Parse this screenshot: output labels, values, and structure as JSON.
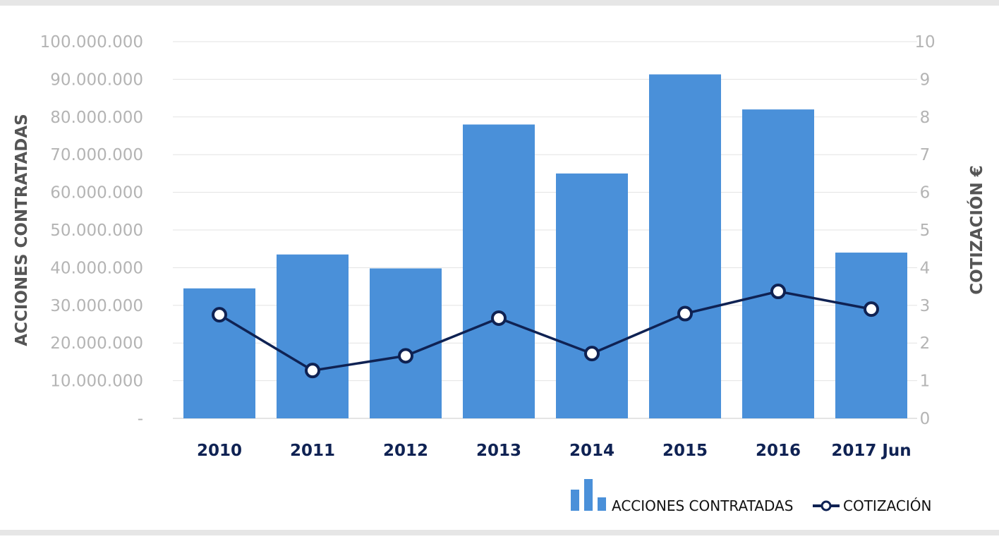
{
  "chart_data": {
    "type": "bar",
    "categories": [
      "2010",
      "2011",
      "2012",
      "2013",
      "2014",
      "2015",
      "2016",
      "2017 Jun"
    ],
    "series": [
      {
        "name": "ACCIONES CONTRATADAS",
        "type": "bar",
        "axis": "left",
        "values": [
          34500000,
          43500000,
          39800000,
          78000000,
          65000000,
          91300000,
          82000000,
          44000000
        ]
      },
      {
        "name": "COTIZACIÓN",
        "type": "line",
        "axis": "right",
        "values": [
          2.75,
          1.27,
          1.66,
          2.66,
          1.72,
          2.78,
          3.37,
          2.9
        ]
      }
    ],
    "ylabel": "ACCIONES CONTRATADAS",
    "y2label": "COTIZACIÓN €",
    "ylim": [
      0,
      100000000
    ],
    "y2lim": [
      0,
      10
    ],
    "left_ticks": [
      "-",
      "10.000.000",
      "20.000.000",
      "30.000.000",
      "40.000.000",
      "50.000.000",
      "60.000.000",
      "70.000.000",
      "80.000.000",
      "90.000.000",
      "100.000.000"
    ],
    "right_ticks": [
      "0",
      "1",
      "2",
      "3",
      "4",
      "5",
      "6",
      "7",
      "8",
      "9",
      "10"
    ],
    "grid": true,
    "legend_position": "bottom-right",
    "colors": {
      "bar": "#4a90d9",
      "line": "#0f2253",
      "grid": "#e3e3e3",
      "tick_label": "#b4b4b4",
      "category_label": "#0f2253",
      "axis_title": "#555555"
    }
  }
}
